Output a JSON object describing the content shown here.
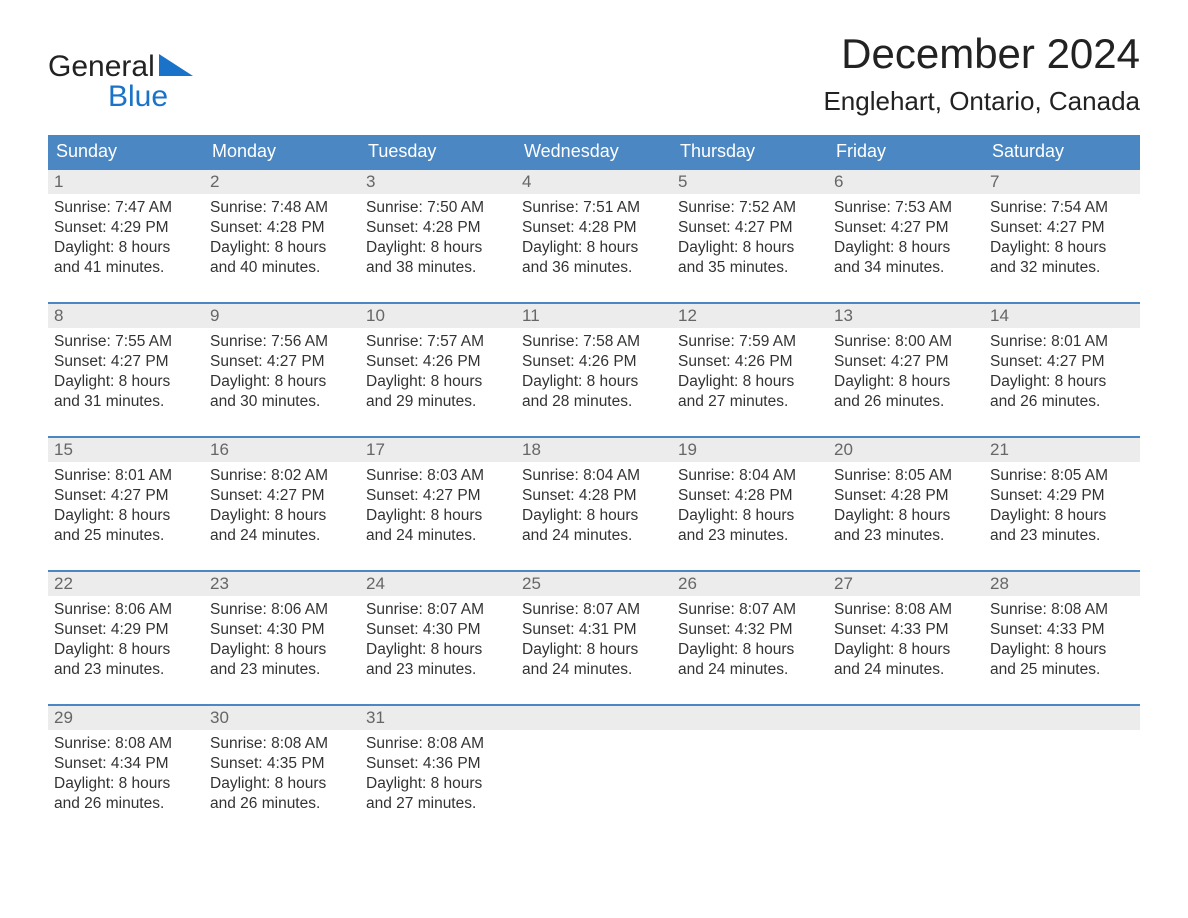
{
  "brand": {
    "word1": "General",
    "word2": "Blue",
    "word1_color": "#222222",
    "word2_color": "#1a73c8",
    "triangle_color": "#1a73c8"
  },
  "header": {
    "title": "December 2024",
    "location": "Englehart, Ontario, Canada",
    "title_fontsize": 42,
    "location_fontsize": 26
  },
  "calendar": {
    "header_bg": "#4a87c3",
    "header_text_color": "#ffffff",
    "row_border_color": "#4a87c3",
    "daynum_bg": "#ececec",
    "daynum_color": "#666666",
    "body_text_color": "#333333",
    "background": "#ffffff",
    "days_of_week": [
      "Sunday",
      "Monday",
      "Tuesday",
      "Wednesday",
      "Thursday",
      "Friday",
      "Saturday"
    ],
    "weeks": [
      [
        {
          "num": "1",
          "sunrise": "Sunrise: 7:47 AM",
          "sunset": "Sunset: 4:29 PM",
          "daylight1": "Daylight: 8 hours",
          "daylight2": "and 41 minutes."
        },
        {
          "num": "2",
          "sunrise": "Sunrise: 7:48 AM",
          "sunset": "Sunset: 4:28 PM",
          "daylight1": "Daylight: 8 hours",
          "daylight2": "and 40 minutes."
        },
        {
          "num": "3",
          "sunrise": "Sunrise: 7:50 AM",
          "sunset": "Sunset: 4:28 PM",
          "daylight1": "Daylight: 8 hours",
          "daylight2": "and 38 minutes."
        },
        {
          "num": "4",
          "sunrise": "Sunrise: 7:51 AM",
          "sunset": "Sunset: 4:28 PM",
          "daylight1": "Daylight: 8 hours",
          "daylight2": "and 36 minutes."
        },
        {
          "num": "5",
          "sunrise": "Sunrise: 7:52 AM",
          "sunset": "Sunset: 4:27 PM",
          "daylight1": "Daylight: 8 hours",
          "daylight2": "and 35 minutes."
        },
        {
          "num": "6",
          "sunrise": "Sunrise: 7:53 AM",
          "sunset": "Sunset: 4:27 PM",
          "daylight1": "Daylight: 8 hours",
          "daylight2": "and 34 minutes."
        },
        {
          "num": "7",
          "sunrise": "Sunrise: 7:54 AM",
          "sunset": "Sunset: 4:27 PM",
          "daylight1": "Daylight: 8 hours",
          "daylight2": "and 32 minutes."
        }
      ],
      [
        {
          "num": "8",
          "sunrise": "Sunrise: 7:55 AM",
          "sunset": "Sunset: 4:27 PM",
          "daylight1": "Daylight: 8 hours",
          "daylight2": "and 31 minutes."
        },
        {
          "num": "9",
          "sunrise": "Sunrise: 7:56 AM",
          "sunset": "Sunset: 4:27 PM",
          "daylight1": "Daylight: 8 hours",
          "daylight2": "and 30 minutes."
        },
        {
          "num": "10",
          "sunrise": "Sunrise: 7:57 AM",
          "sunset": "Sunset: 4:26 PM",
          "daylight1": "Daylight: 8 hours",
          "daylight2": "and 29 minutes."
        },
        {
          "num": "11",
          "sunrise": "Sunrise: 7:58 AM",
          "sunset": "Sunset: 4:26 PM",
          "daylight1": "Daylight: 8 hours",
          "daylight2": "and 28 minutes."
        },
        {
          "num": "12",
          "sunrise": "Sunrise: 7:59 AM",
          "sunset": "Sunset: 4:26 PM",
          "daylight1": "Daylight: 8 hours",
          "daylight2": "and 27 minutes."
        },
        {
          "num": "13",
          "sunrise": "Sunrise: 8:00 AM",
          "sunset": "Sunset: 4:27 PM",
          "daylight1": "Daylight: 8 hours",
          "daylight2": "and 26 minutes."
        },
        {
          "num": "14",
          "sunrise": "Sunrise: 8:01 AM",
          "sunset": "Sunset: 4:27 PM",
          "daylight1": "Daylight: 8 hours",
          "daylight2": "and 26 minutes."
        }
      ],
      [
        {
          "num": "15",
          "sunrise": "Sunrise: 8:01 AM",
          "sunset": "Sunset: 4:27 PM",
          "daylight1": "Daylight: 8 hours",
          "daylight2": "and 25 minutes."
        },
        {
          "num": "16",
          "sunrise": "Sunrise: 8:02 AM",
          "sunset": "Sunset: 4:27 PM",
          "daylight1": "Daylight: 8 hours",
          "daylight2": "and 24 minutes."
        },
        {
          "num": "17",
          "sunrise": "Sunrise: 8:03 AM",
          "sunset": "Sunset: 4:27 PM",
          "daylight1": "Daylight: 8 hours",
          "daylight2": "and 24 minutes."
        },
        {
          "num": "18",
          "sunrise": "Sunrise: 8:04 AM",
          "sunset": "Sunset: 4:28 PM",
          "daylight1": "Daylight: 8 hours",
          "daylight2": "and 24 minutes."
        },
        {
          "num": "19",
          "sunrise": "Sunrise: 8:04 AM",
          "sunset": "Sunset: 4:28 PM",
          "daylight1": "Daylight: 8 hours",
          "daylight2": "and 23 minutes."
        },
        {
          "num": "20",
          "sunrise": "Sunrise: 8:05 AM",
          "sunset": "Sunset: 4:28 PM",
          "daylight1": "Daylight: 8 hours",
          "daylight2": "and 23 minutes."
        },
        {
          "num": "21",
          "sunrise": "Sunrise: 8:05 AM",
          "sunset": "Sunset: 4:29 PM",
          "daylight1": "Daylight: 8 hours",
          "daylight2": "and 23 minutes."
        }
      ],
      [
        {
          "num": "22",
          "sunrise": "Sunrise: 8:06 AM",
          "sunset": "Sunset: 4:29 PM",
          "daylight1": "Daylight: 8 hours",
          "daylight2": "and 23 minutes."
        },
        {
          "num": "23",
          "sunrise": "Sunrise: 8:06 AM",
          "sunset": "Sunset: 4:30 PM",
          "daylight1": "Daylight: 8 hours",
          "daylight2": "and 23 minutes."
        },
        {
          "num": "24",
          "sunrise": "Sunrise: 8:07 AM",
          "sunset": "Sunset: 4:30 PM",
          "daylight1": "Daylight: 8 hours",
          "daylight2": "and 23 minutes."
        },
        {
          "num": "25",
          "sunrise": "Sunrise: 8:07 AM",
          "sunset": "Sunset: 4:31 PM",
          "daylight1": "Daylight: 8 hours",
          "daylight2": "and 24 minutes."
        },
        {
          "num": "26",
          "sunrise": "Sunrise: 8:07 AM",
          "sunset": "Sunset: 4:32 PM",
          "daylight1": "Daylight: 8 hours",
          "daylight2": "and 24 minutes."
        },
        {
          "num": "27",
          "sunrise": "Sunrise: 8:08 AM",
          "sunset": "Sunset: 4:33 PM",
          "daylight1": "Daylight: 8 hours",
          "daylight2": "and 24 minutes."
        },
        {
          "num": "28",
          "sunrise": "Sunrise: 8:08 AM",
          "sunset": "Sunset: 4:33 PM",
          "daylight1": "Daylight: 8 hours",
          "daylight2": "and 25 minutes."
        }
      ],
      [
        {
          "num": "29",
          "sunrise": "Sunrise: 8:08 AM",
          "sunset": "Sunset: 4:34 PM",
          "daylight1": "Daylight: 8 hours",
          "daylight2": "and 26 minutes."
        },
        {
          "num": "30",
          "sunrise": "Sunrise: 8:08 AM",
          "sunset": "Sunset: 4:35 PM",
          "daylight1": "Daylight: 8 hours",
          "daylight2": "and 26 minutes."
        },
        {
          "num": "31",
          "sunrise": "Sunrise: 8:08 AM",
          "sunset": "Sunset: 4:36 PM",
          "daylight1": "Daylight: 8 hours",
          "daylight2": "and 27 minutes."
        },
        {
          "empty": true
        },
        {
          "empty": true
        },
        {
          "empty": true
        },
        {
          "empty": true
        }
      ]
    ]
  }
}
